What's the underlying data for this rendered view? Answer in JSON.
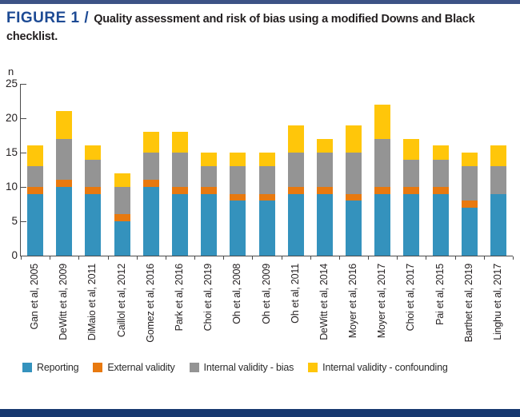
{
  "figure": {
    "label": "FIGURE 1 /",
    "title": "Quality assessment and risk of bias using a modified Downs and Black checklist."
  },
  "colors": {
    "navy_title": "#1d4a94",
    "top_rule": "#3d5386",
    "bottom_rule": "#17386f",
    "axis": "#4a4a4a"
  },
  "chart_data": {
    "type": "bar",
    "stacked": true,
    "title": "Quality assessment and risk of bias using a modified Downs and Black checklist.",
    "xlabel": "",
    "ylabel": "n",
    "ylim": [
      0,
      25
    ],
    "yticks": [
      0,
      5,
      10,
      15,
      20,
      25
    ],
    "grid": false,
    "legend_position": "bottom",
    "categories": [
      "Gan et al, 2005",
      "DeWitt et al, 2009",
      "DiMaio et al, 2011",
      "Caillol et al, 2012",
      "Gomez et al, 2016",
      "Park et al, 2016",
      "Choi et al, 2019",
      "Oh et al, 2008",
      "Oh et al, 2009",
      "Oh et al, 2011",
      "DeWitt et al, 2014",
      "Moyer et al, 2016",
      "Moyer et al, 2017",
      "Choi et al, 2017",
      "Pai et al, 2015",
      "Barthet et al, 2019",
      "Linghu et al, 2017"
    ],
    "series": [
      {
        "name": "Reporting",
        "color": "#3492bd",
        "values": [
          9,
          10,
          9,
          5,
          10,
          9,
          9,
          8,
          8,
          9,
          9,
          8,
          9,
          9,
          9,
          7,
          9
        ]
      },
      {
        "name": "External validity",
        "color": "#e8790f",
        "values": [
          1,
          1,
          1,
          1,
          1,
          1,
          1,
          1,
          1,
          1,
          1,
          1,
          1,
          1,
          1,
          1,
          0
        ]
      },
      {
        "name": "Internal validity - bias",
        "color": "#949494",
        "values": [
          3,
          6,
          4,
          4,
          4,
          5,
          3,
          4,
          4,
          5,
          5,
          6,
          7,
          4,
          4,
          5,
          4
        ]
      },
      {
        "name": "Internal validity - confounding",
        "color": "#ffc60a",
        "values": [
          3,
          4,
          2,
          2,
          3,
          3,
          2,
          2,
          2,
          4,
          2,
          4,
          5,
          3,
          2,
          2,
          3
        ]
      }
    ],
    "totals": [
      16,
      21,
      16,
      12,
      18,
      18,
      15,
      15,
      15,
      19,
      17,
      19,
      22,
      17,
      16,
      15,
      16
    ]
  }
}
